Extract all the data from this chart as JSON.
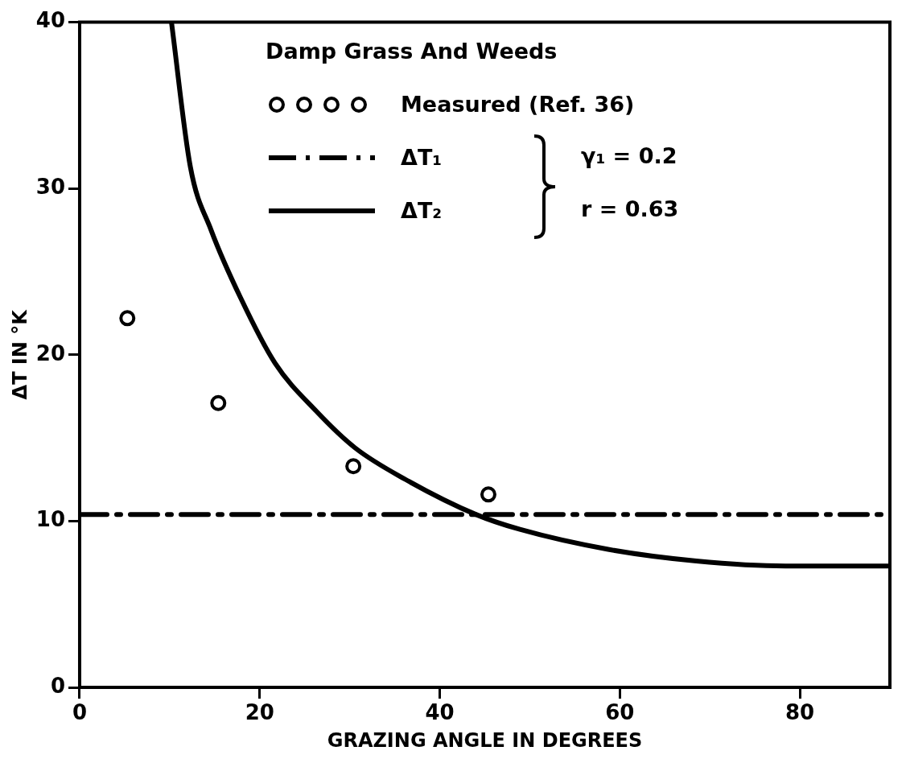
{
  "chart_data": {
    "type": "scatter",
    "xlabel": "GRAZING ANGLE IN DEGREES",
    "ylabel": "ΔT IN °K",
    "legend_title": "Damp Grass And Weeds",
    "xlim": [
      0,
      90
    ],
    "ylim": [
      0,
      40
    ],
    "xticks": [
      0,
      20,
      40,
      60,
      80
    ],
    "yticks": [
      0,
      10,
      20,
      30,
      40
    ],
    "grid": false,
    "legend": "top right",
    "annotations": [
      "γ₁ = 0.2",
      "r = 0.63"
    ],
    "series": [
      {
        "name": "Measured (Ref. 36)",
        "marker": "circle",
        "color": "#000000",
        "x": [
          5.3,
          15.4,
          30.4,
          45.4
        ],
        "values": [
          22.2,
          17.1,
          13.3,
          11.6
        ]
      },
      {
        "name": "ΔT₁",
        "type": "line",
        "line_style": "dashed",
        "marker": "none",
        "color": "#000000",
        "x": [
          0,
          90
        ],
        "values": [
          10.4,
          10.4
        ]
      },
      {
        "name": "ΔT₂",
        "type": "line",
        "line_style": "solid",
        "marker": "none",
        "color": "#000000",
        "x": [
          10.2,
          12.3,
          14.6,
          17.9,
          21.7,
          26.3,
          30.6,
          36.2,
          44.0,
          48.9,
          58.7,
          68.5,
          78.4,
          90
        ],
        "values": [
          40,
          31.3,
          27.5,
          23.4,
          19.5,
          16.6,
          14.4,
          12.5,
          10.4,
          9.5,
          8.3,
          7.6,
          7.3,
          7.3
        ]
      }
    ]
  }
}
